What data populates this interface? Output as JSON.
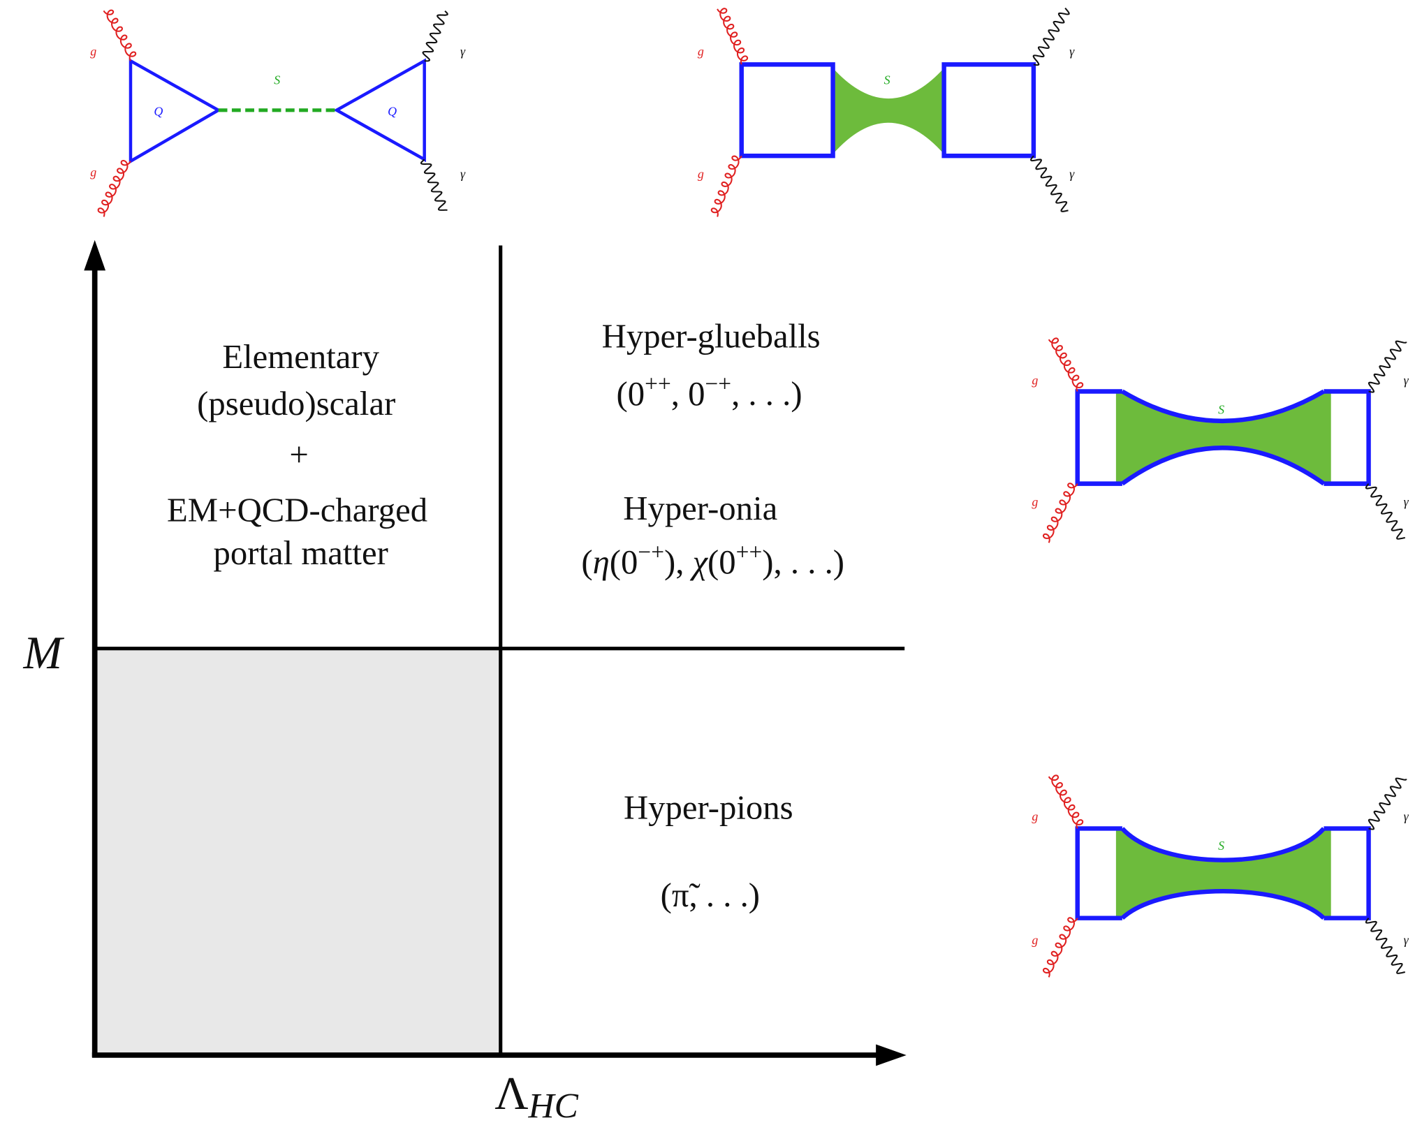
{
  "diagrams": [
    {
      "gluons": [
        "g",
        "g"
      ],
      "photons": [
        "γ",
        "γ"
      ],
      "mediator": "S",
      "fermions": [
        "Q",
        "Q"
      ]
    },
    {
      "gluons": [
        "g",
        "g"
      ],
      "photons": [
        "γ",
        "γ"
      ],
      "mediator": "S"
    },
    {
      "gluons": [
        "g",
        "g"
      ],
      "photons": [
        "γ",
        "γ"
      ],
      "mediator": "S"
    },
    {
      "gluons": [
        "g",
        "g"
      ],
      "photons": [
        "γ",
        "γ"
      ],
      "mediator": "S"
    }
  ],
  "regions": {
    "elementary": {
      "lines": [
        "Elementary",
        "(pseudo)scalar",
        "+",
        "EM+QCD-charged",
        "portal matter"
      ]
    },
    "glueballs": {
      "title": "Hyper-glueballs",
      "states": [
        {
          "text": "(0"
        },
        {
          "sup": "++"
        },
        {
          "text": ", 0"
        },
        {
          "sup": "−+"
        },
        {
          "text": ", . . .)"
        }
      ]
    },
    "onia": {
      "title": "Hyper-onia",
      "states": [
        {
          "text": "("
        },
        {
          "math": "η"
        },
        {
          "text": "(0"
        },
        {
          "sup": "−+"
        },
        {
          "text": "), "
        },
        {
          "math": "χ"
        },
        {
          "text": "(0"
        },
        {
          "sup": "++"
        },
        {
          "text": "), . . .)"
        }
      ]
    },
    "pions": {
      "title": "Hyper-pions",
      "states": "(π̃, . . .)"
    }
  },
  "axes": {
    "y_label": "M",
    "x_label": {
      "symbol": "Λ",
      "subscript": "HC"
    }
  }
}
